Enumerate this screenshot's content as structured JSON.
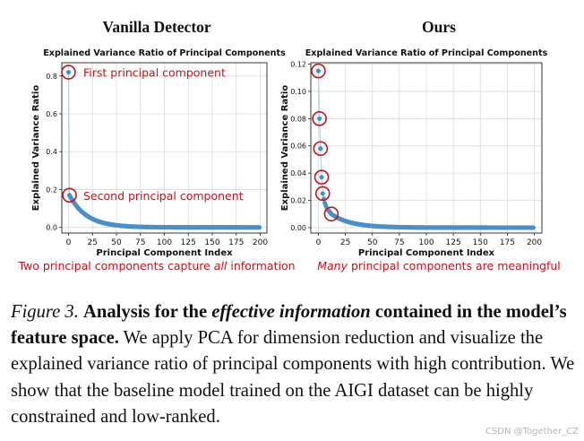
{
  "chart_data": [
    {
      "type": "scatter",
      "panel_title": "Vanilla Detector",
      "title": "Explained Variance Ratio of Principal Components",
      "xlabel": "Principal Component Index",
      "ylabel": "Explained Variance Ratio",
      "xlim": [
        -7,
        207
      ],
      "ylim": [
        -0.03,
        0.87
      ],
      "xticks": [
        0,
        25,
        50,
        75,
        100,
        125,
        150,
        175,
        200
      ],
      "yticks": [
        0.0,
        0.2,
        0.4,
        0.6,
        0.8
      ],
      "ytick_labels": [
        "0.0",
        "0.2",
        "0.4",
        "0.6",
        "0.8"
      ],
      "grid": true,
      "series": [
        {
          "head": [
            0.82,
            0.17
          ],
          "tail_value": 0.0,
          "n_points": 200
        }
      ],
      "circled_indices": [
        0,
        1
      ],
      "annotations": [
        {
          "text": "First principal component",
          "target_index": 0
        },
        {
          "text": "Second principal component",
          "target_index": 1
        }
      ],
      "footnote": {
        "before": "Two principal components capture ",
        "emph": "all",
        "after": " information"
      }
    },
    {
      "type": "scatter",
      "panel_title": "Ours",
      "title": "Explained Variance Ratio of Principal Components",
      "xlabel": "Principal Component Index",
      "ylabel": "Explained Variance Ratio",
      "xlim": [
        -7,
        207
      ],
      "ylim": [
        -0.004,
        0.121
      ],
      "xticks": [
        0,
        25,
        50,
        75,
        100,
        125,
        150,
        175,
        200
      ],
      "yticks": [
        0.0,
        0.02,
        0.04,
        0.06,
        0.08,
        0.1,
        0.12
      ],
      "ytick_labels": [
        "0.00",
        "0.02",
        "0.04",
        "0.06",
        "0.08",
        "0.10",
        "0.12"
      ],
      "grid": true,
      "series": [
        {
          "head": [
            0.115,
            0.08,
            0.058,
            0.037,
            0.025,
            0.021,
            0.018,
            0.016,
            0.014,
            0.013,
            0.012,
            0.011,
            0.01
          ],
          "tail_value": 0.0,
          "n_points": 200
        }
      ],
      "circled_indices": [
        0,
        1,
        2,
        3,
        4,
        12
      ],
      "annotations": [],
      "footnote": {
        "before": "",
        "emph": "Many",
        "after": " principal components are meaningful"
      }
    }
  ],
  "caption": {
    "figure_label": "Figure 3.",
    "bold_1": "Analysis for the",
    "bold_italic": "effective information",
    "bold_2": "contained in the model’s feature space.",
    "body": "We apply PCA for dimension reduction and visualize the explained variance ratio of principal components with high contribution. We show that the baseline model trained on the AIGI dataset can be highly constrained and low-ranked."
  },
  "watermark": "CSDN @Together_CZ",
  "colors": {
    "points": "#4a8fc7",
    "line": "#b5d1ea",
    "annotation": "#c0141b",
    "grid": "#dadada"
  }
}
